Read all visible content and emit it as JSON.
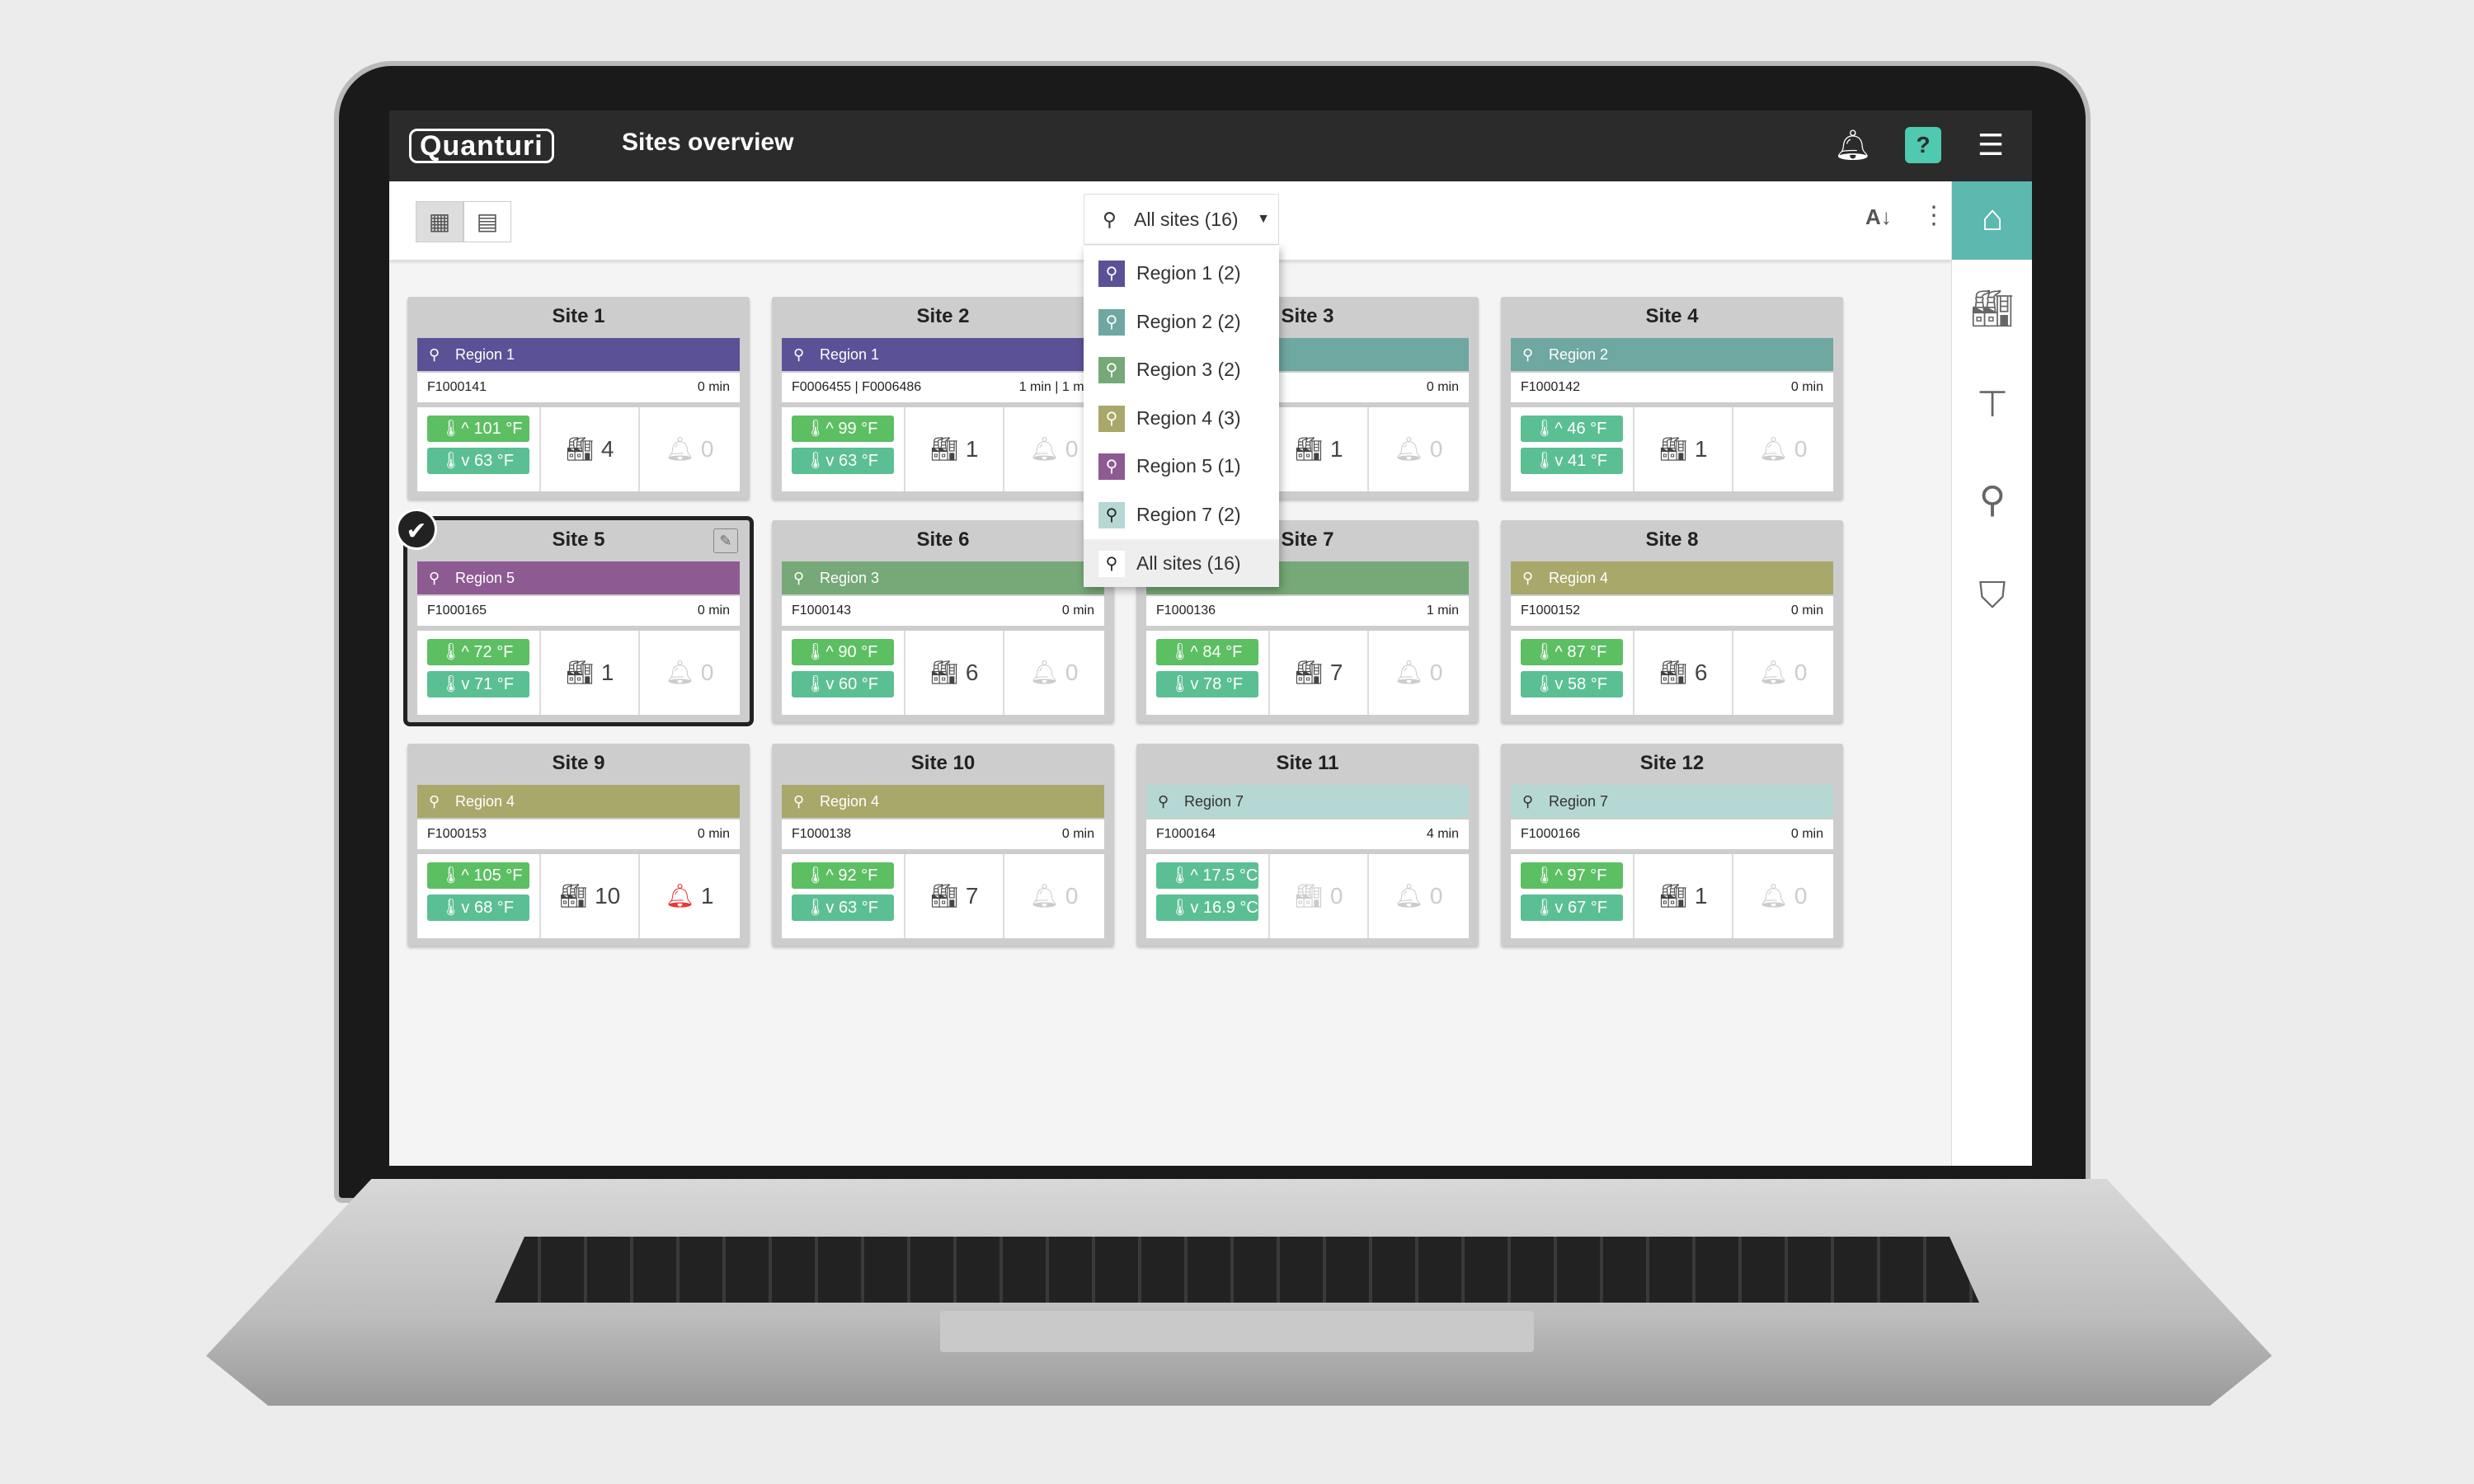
{
  "header": {
    "logo": "Quanturi",
    "title": "Sites overview",
    "icons": [
      "bell-icon",
      "help-chat-icon",
      "menu-icon"
    ],
    "help_color": "#4fc9b0"
  },
  "toolbar": {
    "view_grid": "grid-view-icon",
    "view_list": "list-view-icon",
    "filter_label": "All sites (16)",
    "sort": "sort-az-icon",
    "more": "more-vert-icon"
  },
  "sidebar": {
    "items": [
      "site-hierarchy-icon",
      "warehouse-icon",
      "probe-icon",
      "location-icon",
      "shield-user-icon"
    ],
    "active_color": "#5db8b0"
  },
  "dropdown": {
    "items": [
      {
        "label": "Region 1 (2)",
        "color": "#5b5196"
      },
      {
        "label": "Region 2 (2)",
        "color": "#6fa8a0"
      },
      {
        "label": "Region 3 (2)",
        "color": "#76a977"
      },
      {
        "label": "Region 4 (3)",
        "color": "#a8a86a"
      },
      {
        "label": "Region 5 (1)",
        "color": "#8e5a92"
      },
      {
        "label": "Region 7 (2)",
        "color": "#b6d8d4"
      },
      {
        "label": "All sites (16)",
        "color": "#ffffff",
        "active": true
      }
    ]
  },
  "colors": {
    "temp_high": "#5cbf62",
    "temp_low": "#5bbf94",
    "alarm_active": "#e53935"
  },
  "sites": [
    {
      "name": "Site 1",
      "region": "Region 1",
      "rc": "#5b5196",
      "id": "F1000141",
      "age": "0 min",
      "hi": "101 °F",
      "lo": "63 °F",
      "bld": "4",
      "alm": "0"
    },
    {
      "name": "Site 2",
      "region": "Region 1",
      "rc": "#5b5196",
      "id": "F0006455 | F0006486",
      "age": "1 min | 1 min",
      "hi": "99 °F",
      "lo": "63 °F",
      "bld": "1",
      "alm": "0"
    },
    {
      "name": "Site 3",
      "region": "",
      "rc": "#6fa8a0",
      "id": "",
      "age": "0 min",
      "hi": "",
      "lo": "",
      "bld": "1",
      "alm": "0"
    },
    {
      "name": "Site 4",
      "region": "Region 2",
      "rc": "#6fa8a0",
      "id": "F1000142",
      "age": "0 min",
      "hi": "46 °F",
      "lo": "41 °F",
      "bld": "1",
      "alm": "0",
      "teal": true
    },
    {
      "name": "Site 5",
      "region": "Region 5",
      "rc": "#8e5a92",
      "id": "F1000165",
      "age": "0 min",
      "hi": "72 °F",
      "lo": "71 °F",
      "bld": "1",
      "alm": "0",
      "selected": true
    },
    {
      "name": "Site 6",
      "region": "Region 3",
      "rc": "#76a977",
      "id": "F1000143",
      "age": "0 min",
      "hi": "90 °F",
      "lo": "60 °F",
      "bld": "6",
      "alm": "0"
    },
    {
      "name": "Site 7",
      "region": "",
      "rc": "#76a977",
      "id": "F1000136",
      "age": "1 min",
      "hi": "84 °F",
      "lo": "78 °F",
      "bld": "7",
      "alm": "0"
    },
    {
      "name": "Site 8",
      "region": "Region 4",
      "rc": "#a8a86a",
      "id": "F1000152",
      "age": "0 min",
      "hi": "87 °F",
      "lo": "58 °F",
      "bld": "6",
      "alm": "0"
    },
    {
      "name": "Site 9",
      "region": "Region 4",
      "rc": "#a8a86a",
      "id": "F1000153",
      "age": "0 min",
      "hi": "105 °F",
      "lo": "68 °F",
      "bld": "10",
      "alm": "1",
      "alarm": true
    },
    {
      "name": "Site 10",
      "region": "Region 4",
      "rc": "#a8a86a",
      "id": "F1000138",
      "age": "0 min",
      "hi": "92 °F",
      "lo": "63 °F",
      "bld": "7",
      "alm": "0"
    },
    {
      "name": "Site 11",
      "region": "Region 7",
      "rc": "#b6d8d4",
      "id": "F1000164",
      "age": "4 min",
      "hi": "17.5 °C",
      "lo": "16.9 °C",
      "bld": "0",
      "alm": "0",
      "teal": true,
      "bld_inactive": true
    },
    {
      "name": "Site 12",
      "region": "Region 7",
      "rc": "#b6d8d4",
      "id": "F1000166",
      "age": "0 min",
      "hi": "97 °F",
      "lo": "67 °F",
      "bld": "1",
      "alm": "0"
    }
  ]
}
